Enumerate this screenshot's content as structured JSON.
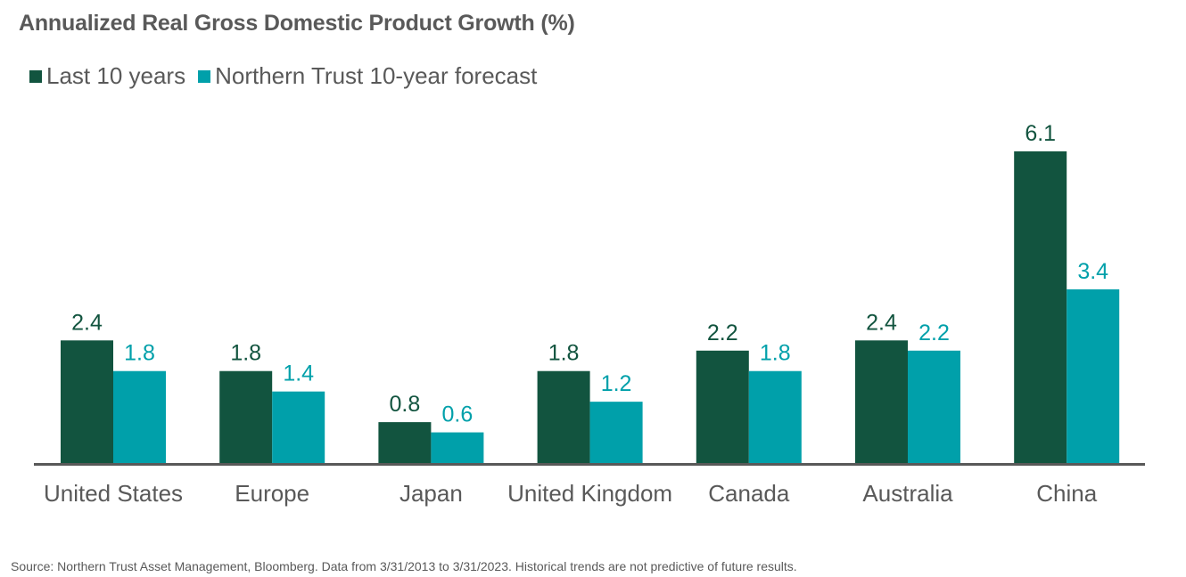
{
  "chart_data": {
    "type": "bar",
    "title": "Annualized Real Gross Domestic Product Growth (%)",
    "xlabel": "",
    "ylabel": "",
    "ylim": [
      0,
      6.1
    ],
    "grid": false,
    "legend_position": "top-left",
    "categories": [
      "United States",
      "Europe",
      "Japan",
      "United Kingdom",
      "Canada",
      "Australia",
      "China"
    ],
    "series": [
      {
        "name": "Last 10 years",
        "color": "#12543F",
        "values": [
          2.4,
          1.8,
          0.8,
          1.8,
          2.2,
          2.4,
          6.1
        ]
      },
      {
        "name": "Northern Trust 10-year forecast",
        "color": "#00A0AA",
        "values": [
          1.8,
          1.4,
          0.6,
          1.2,
          1.8,
          2.2,
          3.4
        ]
      }
    ],
    "data_labels": true,
    "source": "Source: Northern Trust Asset Management, Bloomberg. Data from 3/31/2013 to 3/31/2023. Historical trends are not predictive of future results."
  }
}
